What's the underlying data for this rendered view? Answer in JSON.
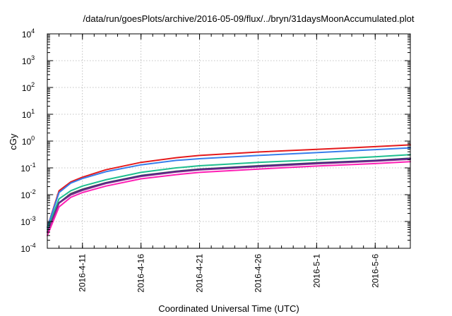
{
  "chart_data": {
    "type": "line",
    "title": "/data/run/goesPlots/archive/2016-05-09/flux/../bryn/31daysMoonAccumulated.plot",
    "xlabel": "Coordinated Universal Time (UTC)",
    "ylabel": "cGy",
    "x_type": "date",
    "xlim": [
      "2016-04-08",
      "2016-05-09"
    ],
    "ylim": [
      0.0001,
      10000
    ],
    "y_scale": "log",
    "grid": true,
    "x_ticks": [
      "2016-4-11",
      "2016-4-16",
      "2016-4-21",
      "2016-4-26",
      "2016-5-1",
      "2016-5-6"
    ],
    "y_ticks": [
      {
        "base": "10",
        "exp": "-4"
      },
      {
        "base": "10",
        "exp": "-3"
      },
      {
        "base": "10",
        "exp": "-2"
      },
      {
        "base": "10",
        "exp": "-1"
      },
      {
        "base": "10",
        "exp": "0"
      },
      {
        "base": "10",
        "exp": "1"
      },
      {
        "base": "10",
        "exp": "2"
      },
      {
        "base": "10",
        "exp": "3"
      },
      {
        "base": "10",
        "exp": "4"
      }
    ],
    "x": [
      "2016-04-08",
      "2016-04-09",
      "2016-04-10",
      "2016-04-11",
      "2016-04-13",
      "2016-04-16",
      "2016-04-19",
      "2016-04-21",
      "2016-04-26",
      "2016-05-01",
      "2016-05-06",
      "2016-05-09"
    ],
    "series": [
      {
        "color": "#e41a1c",
        "values": [
          0.0006,
          0.014,
          0.03,
          0.045,
          0.085,
          0.16,
          0.24,
          0.29,
          0.39,
          0.49,
          0.62,
          0.72
        ]
      },
      {
        "color": "#377eeb",
        "values": [
          0.0006,
          0.012,
          0.027,
          0.04,
          0.072,
          0.13,
          0.19,
          0.22,
          0.29,
          0.37,
          0.48,
          0.56
        ]
      },
      {
        "color": "#1fbf8f",
        "values": [
          0.0005,
          0.007,
          0.014,
          0.021,
          0.036,
          0.068,
          0.1,
          0.12,
          0.16,
          0.2,
          0.26,
          0.31
        ]
      },
      {
        "color": "#555555",
        "values": [
          0.0004,
          0.005,
          0.011,
          0.016,
          0.028,
          0.052,
          0.075,
          0.09,
          0.12,
          0.155,
          0.19,
          0.23
        ]
      },
      {
        "color": "#1a1a8a",
        "values": [
          0.0004,
          0.005,
          0.01,
          0.015,
          0.027,
          0.05,
          0.072,
          0.087,
          0.115,
          0.148,
          0.185,
          0.22
        ]
      },
      {
        "color": "#7a2a8a",
        "values": [
          0.0004,
          0.0048,
          0.0098,
          0.0145,
          0.026,
          0.048,
          0.07,
          0.084,
          0.11,
          0.143,
          0.178,
          0.21
        ]
      },
      {
        "color": "#ff1fb4",
        "values": [
          0.0003,
          0.0035,
          0.008,
          0.012,
          0.021,
          0.039,
          0.056,
          0.068,
          0.09,
          0.117,
          0.145,
          0.17
        ]
      }
    ]
  }
}
